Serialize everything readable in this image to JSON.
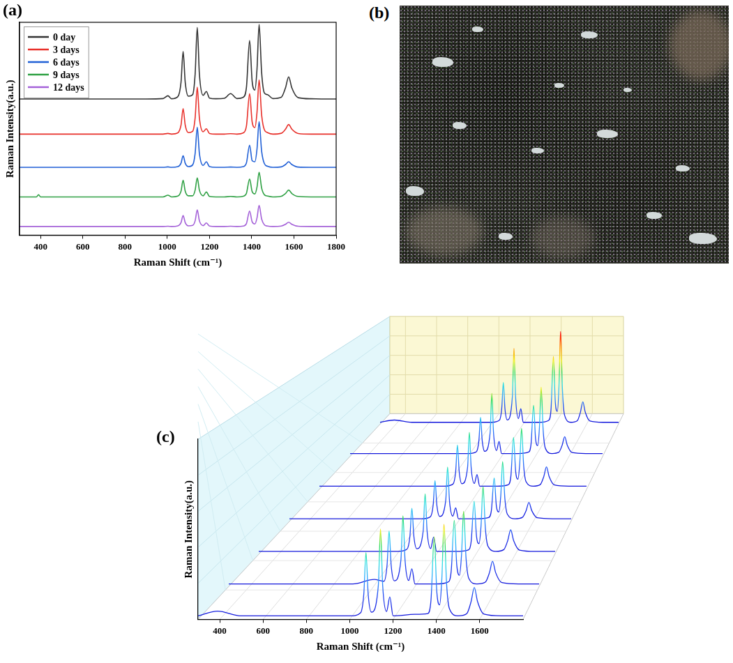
{
  "chart_data": [
    {
      "type": "line",
      "panel": "(a)",
      "x_label": "Raman Shift (cm⁻¹)",
      "y_label": "Raman Intensity(a.u.)",
      "x": [
        300,
        380,
        390,
        400,
        500,
        600,
        700,
        800,
        900,
        980,
        1003,
        1020,
        1050,
        1065,
        1075,
        1085,
        1100,
        1120,
        1132,
        1142,
        1152,
        1170,
        1185,
        1200,
        1230,
        1270,
        1300,
        1330,
        1360,
        1375,
        1390,
        1402,
        1415,
        1425,
        1435,
        1447,
        1460,
        1475,
        1500,
        1540,
        1560,
        1575,
        1590,
        1620,
        1680,
        1750,
        1800
      ],
      "series": [
        {
          "name": "0 day",
          "color": "#333333",
          "values": [
            64,
            64,
            64,
            64,
            64,
            64,
            64,
            64,
            64,
            64.2,
            65.5,
            64.1,
            65.1,
            71.8,
            86.3,
            71.8,
            65.3,
            66,
            75.8,
            97.6,
            75.8,
            65.7,
            67.5,
            64.4,
            64.1,
            64.3,
            66.5,
            64.2,
            64.8,
            69.5,
            91.5,
            72.3,
            68.2,
            78,
            99,
            76.3,
            66.8,
            66,
            64.2,
            64.8,
            69.2,
            74.4,
            69.2,
            64.6,
            64.1,
            64,
            64
          ]
        },
        {
          "name": "3 days",
          "color": "#e8302a",
          "values": [
            47.5,
            47.5,
            47.5,
            47.5,
            47.5,
            47.5,
            47.5,
            47.5,
            47.5,
            47.5,
            47.8,
            47.5,
            48.1,
            51.7,
            59.5,
            51.7,
            48.2,
            48.8,
            55.2,
            69.5,
            55.2,
            48.6,
            50,
            47.8,
            47.5,
            47.5,
            47.7,
            47.5,
            48.1,
            51.3,
            66.5,
            53.2,
            50.6,
            57.7,
            73,
            56.4,
            49.5,
            48.2,
            47.5,
            47.9,
            49.8,
            52,
            49.8,
            47.8,
            47.5,
            47.5,
            47.5
          ]
        },
        {
          "name": "6 days",
          "color": "#1f5fd6",
          "values": [
            31.9,
            31.9,
            31.9,
            31.9,
            31.9,
            31.9,
            31.9,
            31.9,
            31.9,
            31.9,
            32.1,
            31.9,
            32.2,
            33.8,
            37.4,
            33.8,
            32.2,
            33,
            38.5,
            50.7,
            38.5,
            32.8,
            34.5,
            32.2,
            31.9,
            31.9,
            32,
            31.9,
            32.2,
            34,
            42.3,
            35,
            34.5,
            40.5,
            53.3,
            39.4,
            33.6,
            32.4,
            31.9,
            32.1,
            33.2,
            34.5,
            33.2,
            32,
            31.9,
            31.9,
            31.9
          ]
        },
        {
          "name": "9 days",
          "color": "#2ea043",
          "values": [
            18,
            18,
            19,
            18,
            18,
            18,
            18,
            18,
            18,
            18,
            18.8,
            18,
            18.4,
            20.7,
            25.8,
            20.7,
            18.5,
            18.5,
            21.2,
            27,
            21.2,
            18.5,
            20.3,
            18.2,
            18,
            18,
            18.2,
            18,
            18.3,
            19.7,
            26.4,
            20.5,
            19.4,
            22.6,
            29.6,
            22.1,
            19,
            18.4,
            18,
            18.3,
            19.6,
            21.2,
            19.6,
            18.2,
            18,
            18,
            18
          ]
        },
        {
          "name": "12 days",
          "color": "#a461d8",
          "values": [
            4.1,
            4.1,
            4.1,
            4.1,
            4.1,
            4.1,
            4.1,
            4.1,
            4.1,
            4.1,
            4.2,
            4.1,
            4.4,
            5.9,
            9.3,
            5.9,
            4.4,
            4.6,
            6.8,
            11.9,
            6.8,
            4.5,
            5.8,
            4.3,
            4.1,
            4.1,
            4.2,
            4.1,
            4.3,
            5.5,
            11.3,
            6.3,
            5.3,
            8.1,
            14,
            7.6,
            4.9,
            4.3,
            4.1,
            4.3,
            5.1,
            6.1,
            5.1,
            4.2,
            4.1,
            4.1,
            4.1
          ]
        }
      ],
      "xlim": [
        300,
        1800
      ],
      "xticks": [
        400,
        600,
        800,
        1000,
        1200,
        1400,
        1600,
        1800
      ],
      "ylim": [
        0,
        100
      ],
      "yticks": [],
      "tick_labels": "x",
      "grid": false,
      "legend": "upper left"
    },
    {
      "type": "image",
      "panel": "(b)"
    },
    {
      "type": "waterfall",
      "panel": "(c)",
      "x_label": "Raman Shift (cm⁻¹)",
      "y_label": "Raman Intensity(a.u.)",
      "x": [
        300,
        390,
        500,
        700,
        900,
        1003,
        1050,
        1065,
        1075,
        1085,
        1100,
        1132,
        1142,
        1152,
        1170,
        1185,
        1200,
        1300,
        1360,
        1375,
        1390,
        1402,
        1415,
        1425,
        1435,
        1447,
        1460,
        1500,
        1540,
        1560,
        1575,
        1590,
        1620,
        1700,
        1800
      ],
      "series": [
        {
          "values": [
            2,
            5,
            2,
            2,
            2,
            2,
            4,
            16,
            42,
            16,
            4.4,
            21.3,
            57,
            21.3,
            4.8,
            14,
            2,
            3,
            3.5,
            12,
            52,
            17,
            9,
            25.2,
            60,
            22.3,
            6.6,
            2,
            3.4,
            11,
            20,
            11,
            3.1,
            2,
            2
          ]
        },
        {
          "values": [
            2,
            2,
            2,
            2,
            2,
            5,
            3.8,
            14.3,
            37,
            14.3,
            4.1,
            17.8,
            47,
            17.8,
            4.3,
            12,
            2,
            2,
            3.3,
            10.4,
            44,
            14.6,
            7.8,
            21.2,
            50,
            18.8,
            5.8,
            2,
            3.2,
            9.5,
            17,
            9.5,
            2.9,
            2,
            2
          ]
        },
        {
          "values": [
            2,
            2,
            2,
            2,
            2,
            2,
            3.5,
            12.5,
            32,
            12.5,
            3.8,
            16,
            42,
            16,
            4,
            12,
            2,
            2,
            3,
            9,
            37,
            12.5,
            7.4,
            20,
            47,
            17.8,
            5.6,
            2,
            3.2,
            9.5,
            17,
            9.5,
            2.9,
            2,
            2
          ]
        },
        {
          "values": [
            2,
            2,
            2,
            2,
            2,
            2,
            3.4,
            11.8,
            30,
            11.8,
            3.7,
            15.3,
            40,
            15.3,
            3.9,
            10,
            2,
            2,
            2.9,
            8,
            32,
            11,
            7,
            18.8,
            44,
            16.7,
            5.4,
            2,
            3,
            8,
            14,
            8,
            2.7,
            2,
            2
          ]
        },
        {
          "values": [
            2,
            2,
            2,
            2,
            2,
            2,
            3.6,
            13.2,
            34,
            13.2,
            3.9,
            16.7,
            44,
            16.7,
            4.1,
            11,
            2,
            2,
            3.1,
            9.6,
            40,
            13.4,
            7.4,
            20,
            47,
            17.8,
            5.6,
            2,
            3.2,
            9.5,
            17,
            9.5,
            2.9,
            2,
            2
          ]
        },
        {
          "values": [
            2,
            2,
            2,
            2,
            2,
            2,
            3.5,
            12.5,
            32,
            12.5,
            3.8,
            19.5,
            52,
            19.5,
            4.5,
            12,
            2,
            2,
            3.2,
            10,
            42,
            14,
            8.6,
            24,
            57,
            21.3,
            6.4,
            2,
            3.1,
            9,
            16,
            9,
            2.8,
            2,
            2
          ]
        },
        {
          "values": [
            2,
            4,
            2,
            2,
            2,
            2,
            3.8,
            14.3,
            37,
            14.3,
            4.1,
            24.8,
            67,
            24.8,
            5.3,
            14,
            2,
            2,
            3.7,
            13.6,
            60,
            19.4,
            11.6,
            34,
            82,
            30,
            8.4,
            2,
            3.4,
            11,
            20,
            11,
            3.1,
            2,
            2
          ]
        }
      ],
      "xlim": [
        300,
        1800
      ],
      "xticks": [
        400,
        600,
        800,
        1000,
        1200,
        1400,
        1600
      ],
      "ylim": [
        0,
        100
      ],
      "yticks": [],
      "tick_labels": "x",
      "grid": true
    }
  ]
}
